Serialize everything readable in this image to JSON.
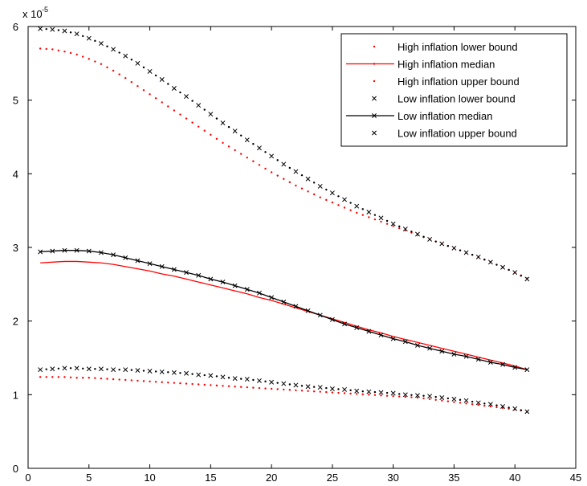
{
  "chart_data": {
    "type": "line",
    "title": "",
    "xlabel": "",
    "ylabel": "",
    "xlim": [
      0,
      45
    ],
    "ylim": [
      0,
      6
    ],
    "x_ticks": [
      0,
      5,
      10,
      15,
      20,
      25,
      30,
      35,
      40,
      45
    ],
    "y_ticks": [
      0,
      1,
      2,
      3,
      4,
      5,
      6
    ],
    "y_multiplier_base": "x 10",
    "y_multiplier_exponent": "-5",
    "grid": false,
    "legend_position": "top-right",
    "x": [
      1,
      2,
      3,
      4,
      5,
      6,
      7,
      8,
      9,
      10,
      11,
      12,
      13,
      14,
      15,
      16,
      17,
      18,
      19,
      20,
      21,
      22,
      23,
      24,
      25,
      26,
      27,
      28,
      29,
      30,
      31,
      32,
      33,
      34,
      35,
      36,
      37,
      38,
      39,
      40,
      41
    ],
    "series": [
      {
        "name": "High inflation lower bound",
        "color": "#ff0000",
        "style": "dot",
        "values": [
          1.24,
          1.24,
          1.24,
          1.23,
          1.23,
          1.22,
          1.21,
          1.2,
          1.19,
          1.18,
          1.17,
          1.16,
          1.15,
          1.14,
          1.13,
          1.12,
          1.11,
          1.1,
          1.09,
          1.08,
          1.07,
          1.06,
          1.05,
          1.04,
          1.03,
          1.02,
          1.01,
          1.0,
          0.99,
          0.98,
          0.97,
          0.96,
          0.94,
          0.92,
          0.9,
          0.88,
          0.86,
          0.84,
          0.82,
          0.8,
          0.77
        ]
      },
      {
        "name": "High inflation median",
        "color": "#ff0000",
        "style": "line",
        "values": [
          2.79,
          2.8,
          2.81,
          2.81,
          2.8,
          2.79,
          2.77,
          2.74,
          2.71,
          2.68,
          2.64,
          2.61,
          2.57,
          2.53,
          2.49,
          2.45,
          2.41,
          2.37,
          2.32,
          2.28,
          2.23,
          2.18,
          2.13,
          2.08,
          2.03,
          1.98,
          1.93,
          1.88,
          1.84,
          1.79,
          1.75,
          1.71,
          1.67,
          1.63,
          1.59,
          1.55,
          1.51,
          1.47,
          1.43,
          1.39,
          1.34
        ]
      },
      {
        "name": "High inflation upper bound",
        "color": "#ff0000",
        "style": "dot",
        "values": [
          5.7,
          5.69,
          5.66,
          5.62,
          5.56,
          5.49,
          5.4,
          5.3,
          5.19,
          5.08,
          4.97,
          4.86,
          4.75,
          4.64,
          4.53,
          4.42,
          4.32,
          4.22,
          4.12,
          4.02,
          3.93,
          3.84,
          3.76,
          3.68,
          3.61,
          3.54,
          3.47,
          3.41,
          3.35,
          3.29,
          3.23,
          3.17,
          3.11,
          3.05,
          2.99,
          2.93,
          2.87,
          2.8,
          2.73,
          2.66,
          2.58
        ]
      },
      {
        "name": "Low inflation lower bound",
        "color": "#000000",
        "style": "x",
        "values": [
          1.34,
          1.35,
          1.36,
          1.36,
          1.35,
          1.35,
          1.34,
          1.34,
          1.33,
          1.32,
          1.31,
          1.3,
          1.29,
          1.27,
          1.26,
          1.24,
          1.22,
          1.21,
          1.19,
          1.17,
          1.15,
          1.13,
          1.11,
          1.1,
          1.08,
          1.07,
          1.05,
          1.04,
          1.03,
          1.02,
          1.0,
          0.99,
          0.98,
          0.96,
          0.94,
          0.92,
          0.89,
          0.87,
          0.84,
          0.81,
          0.77
        ]
      },
      {
        "name": "Low inflation median",
        "color": "#000000",
        "style": "line-x",
        "values": [
          2.94,
          2.95,
          2.96,
          2.96,
          2.95,
          2.93,
          2.9,
          2.86,
          2.82,
          2.78,
          2.74,
          2.7,
          2.66,
          2.62,
          2.57,
          2.53,
          2.48,
          2.43,
          2.38,
          2.32,
          2.26,
          2.2,
          2.14,
          2.08,
          2.02,
          1.96,
          1.91,
          1.86,
          1.81,
          1.76,
          1.72,
          1.67,
          1.63,
          1.59,
          1.55,
          1.52,
          1.48,
          1.44,
          1.41,
          1.37,
          1.34
        ]
      },
      {
        "name": "Low inflation upper bound",
        "color": "#000000",
        "style": "x",
        "values": [
          5.97,
          5.96,
          5.94,
          5.9,
          5.84,
          5.77,
          5.69,
          5.6,
          5.5,
          5.39,
          5.28,
          5.16,
          5.05,
          4.93,
          4.81,
          4.69,
          4.58,
          4.46,
          4.35,
          4.24,
          4.13,
          4.03,
          3.93,
          3.83,
          3.74,
          3.65,
          3.56,
          3.48,
          3.4,
          3.32,
          3.25,
          3.18,
          3.11,
          3.05,
          2.99,
          2.93,
          2.87,
          2.8,
          2.73,
          2.66,
          2.57
        ]
      }
    ]
  }
}
